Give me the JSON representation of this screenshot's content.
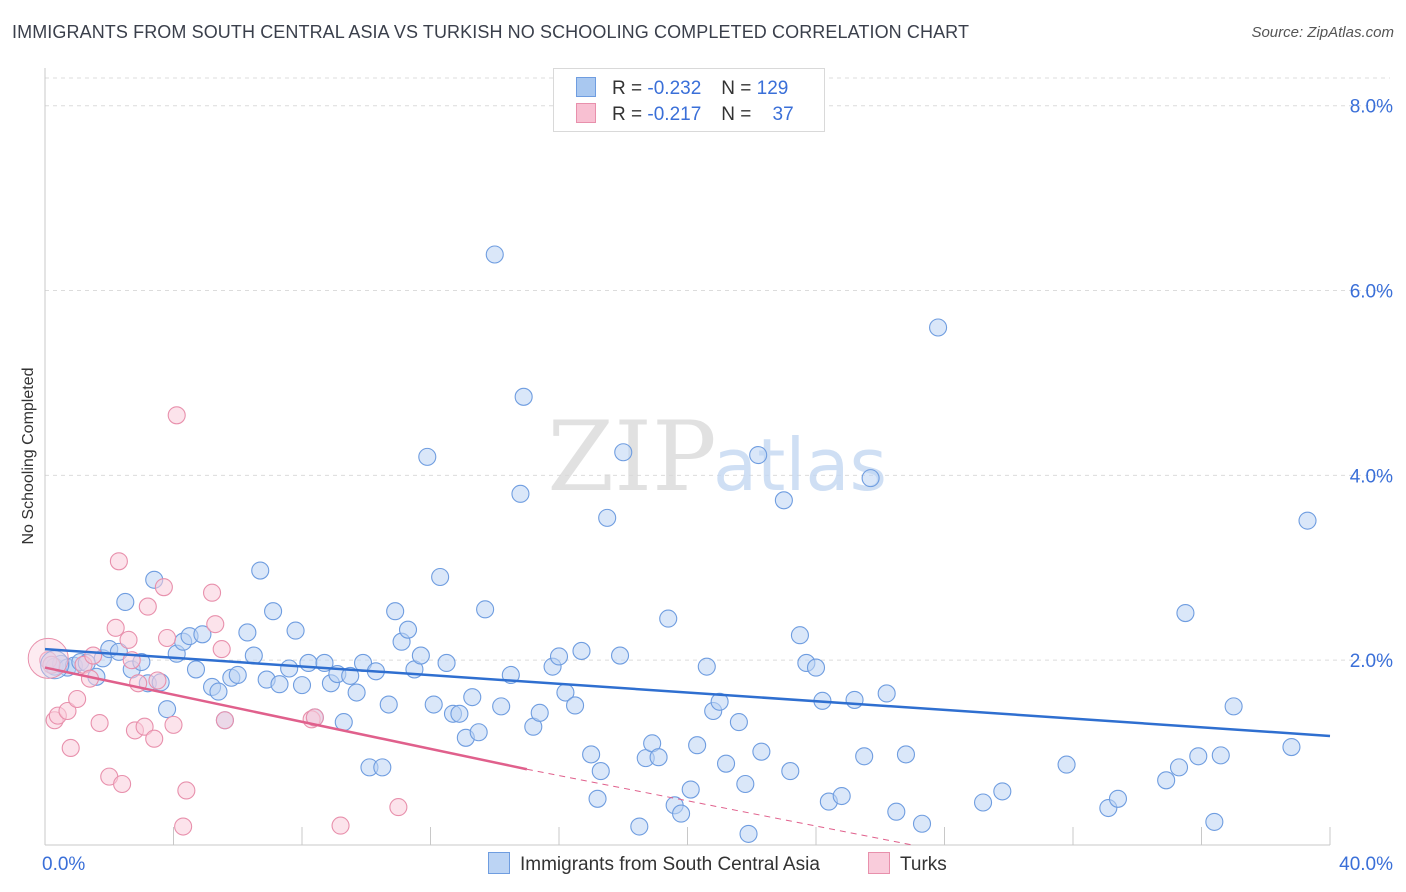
{
  "title": "IMMIGRANTS FROM SOUTH CENTRAL ASIA VS TURKISH NO SCHOOLING COMPLETED CORRELATION CHART",
  "source": "Source: ZipAtlas.com",
  "watermark": {
    "zip": "ZIP",
    "atlas": "atlas"
  },
  "legend": {
    "r_label": "R =",
    "n_label": "N =",
    "rows": [
      {
        "r": "-0.232",
        "n": "129",
        "color": "#a9c8f0",
        "border": "#6f9de0"
      },
      {
        "r": "-0.217",
        "n": "37",
        "color": "#f8c0d2",
        "border": "#e890ac"
      }
    ]
  },
  "bottom_legend": [
    {
      "label": "Immigrants from South Central Asia",
      "color": "#bcd4f4",
      "border": "#6f9de0"
    },
    {
      "label": "Turks",
      "color": "#f9ccdb",
      "border": "#e890ac"
    }
  ],
  "chart_data": {
    "type": "scatter",
    "title": "IMMIGRANTS FROM SOUTH CENTRAL ASIA VS TURKISH NO SCHOOLING COMPLETED CORRELATION CHART",
    "xlabel": "",
    "ylabel": "No Schooling Completed",
    "xlim": [
      0,
      40
    ],
    "ylim": [
      0,
      8.3
    ],
    "x_tick_labels": [
      {
        "value": 0,
        "label": "0.0%"
      },
      {
        "value": 40,
        "label": "40.0%"
      }
    ],
    "y_tick_labels": [
      {
        "value": 2,
        "label": "2.0%"
      },
      {
        "value": 4,
        "label": "4.0%"
      },
      {
        "value": 6,
        "label": "6.0%"
      },
      {
        "value": 8,
        "label": "8.0%"
      }
    ],
    "grid": true,
    "legend_position": "top-center",
    "series": [
      {
        "name": "Immigrants from South Central Asia",
        "color": "#6f9de0",
        "fill": "#bcd4f4",
        "points": [
          [
            0.3,
            1.93
          ],
          [
            0.5,
            1.96
          ],
          [
            0.7,
            1.92
          ],
          [
            0.9,
            1.94
          ],
          [
            1.1,
            1.98
          ],
          [
            1.3,
            1.97
          ],
          [
            1.6,
            1.82
          ],
          [
            1.8,
            2.02
          ],
          [
            2.0,
            2.12
          ],
          [
            2.3,
            2.09
          ],
          [
            2.5,
            2.63
          ],
          [
            2.7,
            1.9
          ],
          [
            3.0,
            1.98
          ],
          [
            3.2,
            1.75
          ],
          [
            3.4,
            2.87
          ],
          [
            3.6,
            1.76
          ],
          [
            3.8,
            1.47
          ],
          [
            4.1,
            2.07
          ],
          [
            4.3,
            2.2
          ],
          [
            4.5,
            2.26
          ],
          [
            4.7,
            1.9
          ],
          [
            4.9,
            2.28
          ],
          [
            5.2,
            1.71
          ],
          [
            5.4,
            1.66
          ],
          [
            5.6,
            1.35
          ],
          [
            5.8,
            1.81
          ],
          [
            6.0,
            1.84
          ],
          [
            6.3,
            2.3
          ],
          [
            6.5,
            2.05
          ],
          [
            6.7,
            2.97
          ],
          [
            6.9,
            1.79
          ],
          [
            7.1,
            2.53
          ],
          [
            7.3,
            1.74
          ],
          [
            7.6,
            1.91
          ],
          [
            7.8,
            2.32
          ],
          [
            8.0,
            1.73
          ],
          [
            8.2,
            1.97
          ],
          [
            8.4,
            1.38
          ],
          [
            8.7,
            1.97
          ],
          [
            8.9,
            1.75
          ],
          [
            9.1,
            1.85
          ],
          [
            9.3,
            1.33
          ],
          [
            9.5,
            1.83
          ],
          [
            9.7,
            1.65
          ],
          [
            9.9,
            1.97
          ],
          [
            10.1,
            0.84
          ],
          [
            10.3,
            1.88
          ],
          [
            10.5,
            0.84
          ],
          [
            10.7,
            1.52
          ],
          [
            10.9,
            2.53
          ],
          [
            11.1,
            2.2
          ],
          [
            11.3,
            2.33
          ],
          [
            11.5,
            1.9
          ],
          [
            11.7,
            2.05
          ],
          [
            11.9,
            4.2
          ],
          [
            12.1,
            1.52
          ],
          [
            12.3,
            2.9
          ],
          [
            12.5,
            1.97
          ],
          [
            12.7,
            1.42
          ],
          [
            12.9,
            1.42
          ],
          [
            13.1,
            1.16
          ],
          [
            13.3,
            1.6
          ],
          [
            13.5,
            1.22
          ],
          [
            13.7,
            2.55
          ],
          [
            14.0,
            6.39
          ],
          [
            14.2,
            1.5
          ],
          [
            14.5,
            1.84
          ],
          [
            14.8,
            3.8
          ],
          [
            14.9,
            4.85
          ],
          [
            15.2,
            1.28
          ],
          [
            15.4,
            1.43
          ],
          [
            15.8,
            1.93
          ],
          [
            16.0,
            2.04
          ],
          [
            16.2,
            1.65
          ],
          [
            16.5,
            1.51
          ],
          [
            16.7,
            2.1
          ],
          [
            17.0,
            0.98
          ],
          [
            17.2,
            0.5
          ],
          [
            17.3,
            0.8
          ],
          [
            17.5,
            3.54
          ],
          [
            17.9,
            2.05
          ],
          [
            18.0,
            4.25
          ],
          [
            18.5,
            0.2
          ],
          [
            18.7,
            0.94
          ],
          [
            18.9,
            1.1
          ],
          [
            19.1,
            0.95
          ],
          [
            19.4,
            2.45
          ],
          [
            19.6,
            0.43
          ],
          [
            19.8,
            0.34
          ],
          [
            20.1,
            0.6
          ],
          [
            20.3,
            1.08
          ],
          [
            20.6,
            1.93
          ],
          [
            20.8,
            1.45
          ],
          [
            21.0,
            1.55
          ],
          [
            21.2,
            0.88
          ],
          [
            21.6,
            1.33
          ],
          [
            21.8,
            0.66
          ],
          [
            21.9,
            0.12
          ],
          [
            22.2,
            4.22
          ],
          [
            22.3,
            1.01
          ],
          [
            23.0,
            3.73
          ],
          [
            23.2,
            0.8
          ],
          [
            23.5,
            2.27
          ],
          [
            23.7,
            1.97
          ],
          [
            24.0,
            1.92
          ],
          [
            24.2,
            1.56
          ],
          [
            24.4,
            0.47
          ],
          [
            24.8,
            0.53
          ],
          [
            25.2,
            1.57
          ],
          [
            25.5,
            0.96
          ],
          [
            25.7,
            3.97
          ],
          [
            26.2,
            1.64
          ],
          [
            26.5,
            0.36
          ],
          [
            26.8,
            0.98
          ],
          [
            27.8,
            5.6
          ],
          [
            27.3,
            0.23
          ],
          [
            29.2,
            0.46
          ],
          [
            29.8,
            0.58
          ],
          [
            31.8,
            0.87
          ],
          [
            33.1,
            0.4
          ],
          [
            33.4,
            0.5
          ],
          [
            34.9,
            0.7
          ],
          [
            35.3,
            0.84
          ],
          [
            35.5,
            2.51
          ],
          [
            35.9,
            0.96
          ],
          [
            36.4,
            0.25
          ],
          [
            36.6,
            0.97
          ],
          [
            37.0,
            1.5
          ],
          [
            38.8,
            1.06
          ],
          [
            39.3,
            3.51
          ]
        ]
      },
      {
        "name": "Turks",
        "color": "#e890ac",
        "fill": "#f9ccdb",
        "points": [
          [
            0.1,
            2.0
          ],
          [
            0.2,
            1.95
          ],
          [
            0.3,
            1.35
          ],
          [
            0.4,
            1.4
          ],
          [
            0.7,
            1.45
          ],
          [
            0.8,
            1.05
          ],
          [
            1.0,
            1.58
          ],
          [
            1.2,
            1.95
          ],
          [
            1.4,
            1.8
          ],
          [
            1.5,
            2.05
          ],
          [
            1.7,
            1.32
          ],
          [
            2.0,
            0.74
          ],
          [
            2.2,
            2.35
          ],
          [
            2.3,
            3.07
          ],
          [
            2.4,
            0.66
          ],
          [
            2.6,
            2.22
          ],
          [
            2.7,
            2.0
          ],
          [
            2.8,
            1.24
          ],
          [
            2.9,
            1.75
          ],
          [
            3.1,
            1.28
          ],
          [
            3.2,
            2.58
          ],
          [
            3.4,
            1.15
          ],
          [
            3.5,
            1.78
          ],
          [
            3.7,
            2.79
          ],
          [
            3.8,
            2.24
          ],
          [
            4.0,
            1.3
          ],
          [
            4.1,
            4.65
          ],
          [
            4.3,
            0.2
          ],
          [
            4.4,
            0.59
          ],
          [
            5.2,
            2.73
          ],
          [
            5.3,
            2.39
          ],
          [
            5.5,
            2.12
          ],
          [
            5.6,
            1.35
          ],
          [
            8.3,
            1.36
          ],
          [
            8.4,
            1.38
          ],
          [
            9.2,
            0.21
          ],
          [
            11.0,
            0.41
          ]
        ]
      }
    ],
    "trend_lines": [
      {
        "series": "Immigrants from South Central Asia",
        "x": [
          0,
          40
        ],
        "y": [
          2.12,
          1.18
        ],
        "style": "solid"
      },
      {
        "series": "Turks",
        "x": [
          0,
          15
        ],
        "y": [
          1.92,
          0.82
        ],
        "style": "solid"
      },
      {
        "series": "Turks",
        "x": [
          15,
          27
        ],
        "y": [
          0.82,
          0.0
        ],
        "style": "dashed"
      }
    ]
  }
}
